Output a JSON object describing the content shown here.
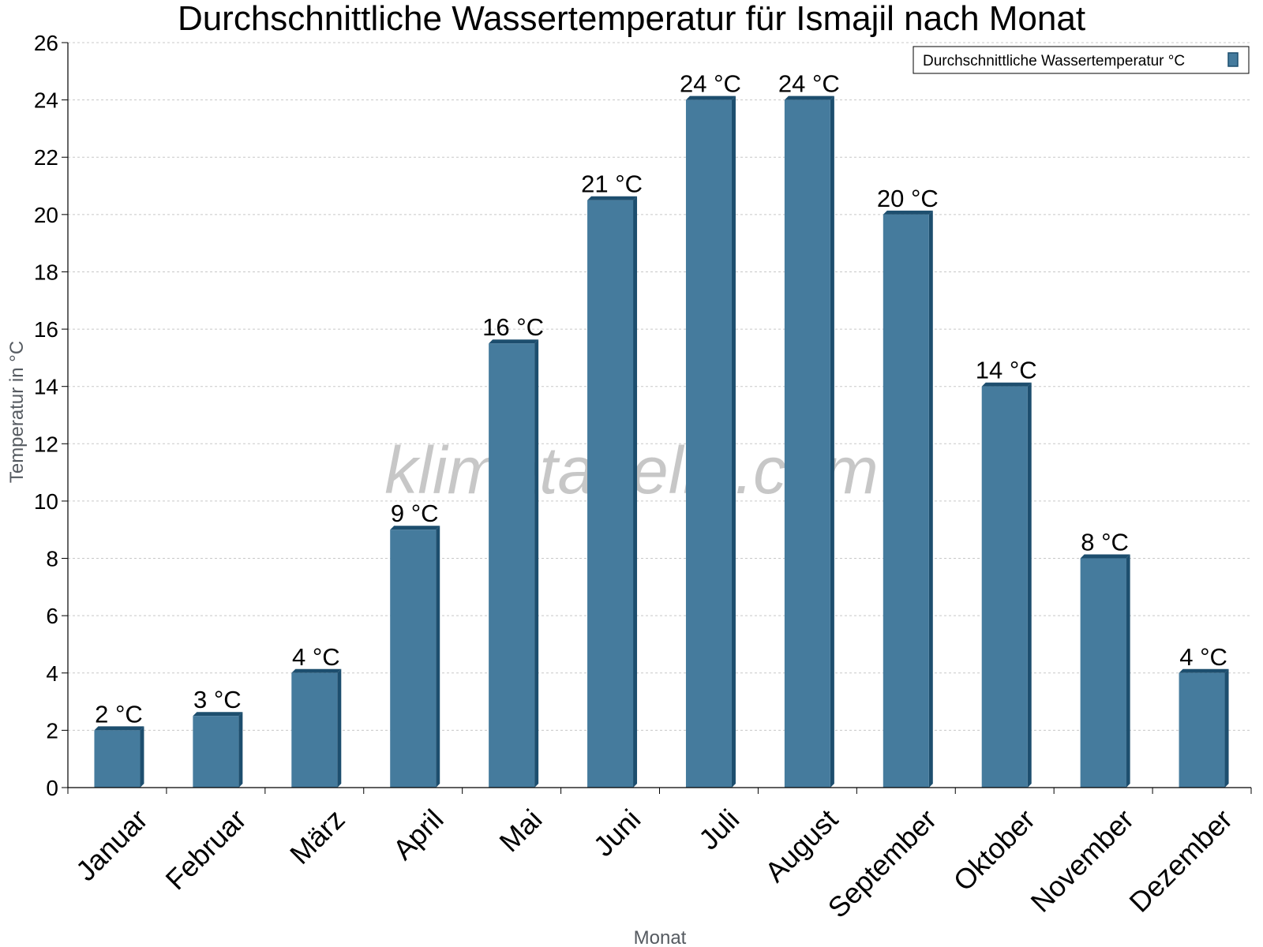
{
  "chart_data": {
    "type": "bar",
    "title": "Durchschnittliche Wassertemperatur für Ismajil nach Monat",
    "xlabel": "Monat",
    "ylabel": "Temperatur in °C",
    "categories": [
      "Januar",
      "Februar",
      "März",
      "April",
      "Mai",
      "Juni",
      "Juli",
      "August",
      "September",
      "Oktober",
      "November",
      "Dezember"
    ],
    "series": [
      {
        "name": "Durchschnittliche Wassertemperatur °C",
        "values": [
          2,
          2.5,
          4,
          9,
          15.5,
          20.5,
          24,
          24,
          20,
          14,
          8,
          4
        ],
        "labels": [
          "2 °C",
          "3 °C",
          "4 °C",
          "9 °C",
          "16 °C",
          "21 °C",
          "24 °C",
          "24 °C",
          "20 °C",
          "14 °C",
          "8 °C",
          "4 °C"
        ]
      }
    ],
    "ylim": [
      0,
      26
    ],
    "yticks": [
      0,
      2,
      4,
      6,
      8,
      10,
      12,
      14,
      16,
      18,
      20,
      22,
      24,
      26
    ],
    "grid": true,
    "legend_position": "top-right",
    "bar_color": "#457b9d",
    "bar_edge_color": "#1d4e6e",
    "watermark": "klimatabelle.com"
  }
}
